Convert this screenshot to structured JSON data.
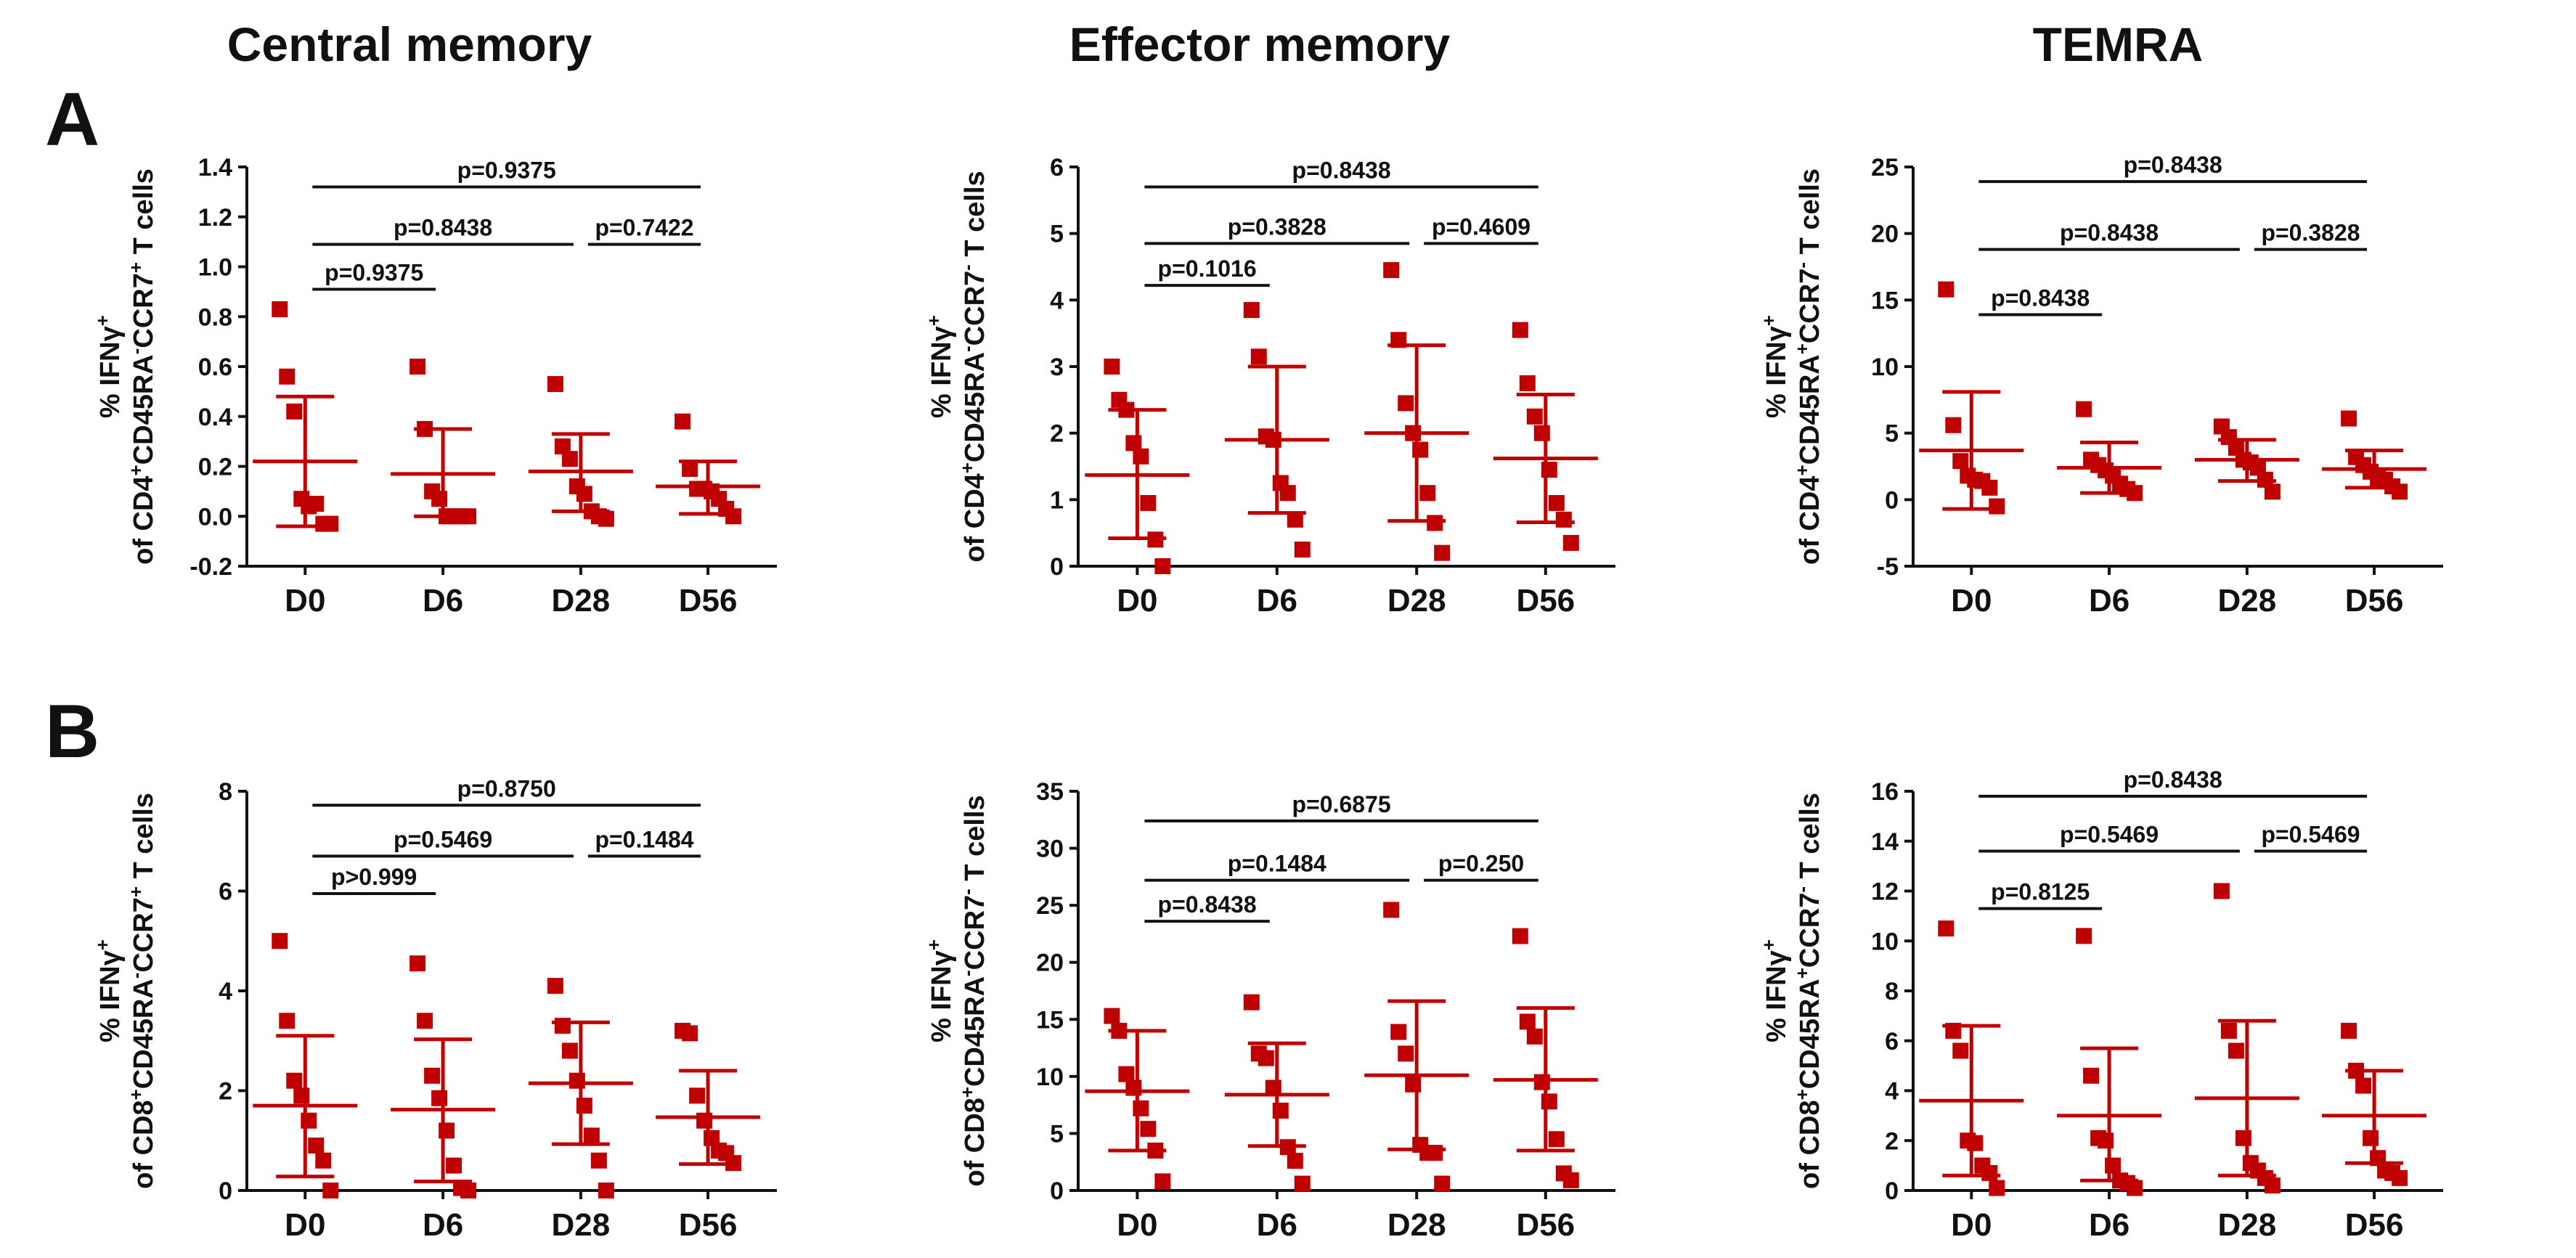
{
  "column_titles": [
    "Central memory",
    "Effector memory",
    "TEMRA"
  ],
  "panel_labels": [
    "A",
    "B"
  ],
  "colors": {
    "marker": "#c00000",
    "axis": "#111111"
  },
  "chart_data": [
    {
      "id": "A-central",
      "type": "scatter",
      "row": "A",
      "col": 0,
      "categories": [
        "D0",
        "D6",
        "D28",
        "D56"
      ],
      "ylim": [
        -0.2,
        1.4
      ],
      "yticks": [
        -0.2,
        0.0,
        0.2,
        0.4,
        0.6,
        0.8,
        1.0,
        1.2,
        1.4
      ],
      "ytick_labels": [
        "-0.2",
        "0.0",
        "0.2",
        "0.4",
        "0.6",
        "0.8",
        "1.0",
        "1.2",
        "1.4"
      ],
      "ylabel_line1": "% IFNγ",
      "ylabel_line1_sup": "+",
      "ylabel_line2": [
        [
          "of CD4",
          ""
        ],
        [
          "+",
          "sup"
        ],
        [
          "CD45RA",
          ""
        ],
        [
          "-",
          "sup"
        ],
        [
          "CCR7",
          ""
        ],
        [
          "+",
          "sup"
        ],
        [
          " T cells",
          ""
        ]
      ],
      "points": [
        [
          0.83,
          0.56,
          0.42,
          0.07,
          0.04,
          0.05,
          -0.03,
          -0.03
        ],
        [
          0.6,
          0.35,
          0.1,
          0.07,
          0.0,
          0.0,
          0.0,
          0.0
        ],
        [
          0.53,
          0.28,
          0.23,
          0.12,
          0.09,
          0.02,
          0.0,
          -0.01
        ],
        [
          0.38,
          0.19,
          0.11,
          0.11,
          0.1,
          0.07,
          0.03,
          0.0
        ]
      ],
      "mean": [
        0.22,
        0.17,
        0.18,
        0.12
      ],
      "sd_upper": [
        0.48,
        0.35,
        0.33,
        0.22
      ],
      "sd_lower": [
        -0.04,
        0.0,
        0.02,
        0.01
      ],
      "comparisons": [
        {
          "from": 0,
          "to": 1,
          "label": "p=0.9375",
          "y": 0.91
        },
        {
          "from": 0,
          "to": 2,
          "label": "p=0.8438",
          "y": 1.09
        },
        {
          "from": 2,
          "to": 3,
          "label": "p=0.7422",
          "y": 1.09
        },
        {
          "from": 0,
          "to": 3,
          "label": "p=0.9375",
          "y": 1.32
        }
      ]
    },
    {
      "id": "A-effector",
      "type": "scatter",
      "row": "A",
      "col": 1,
      "categories": [
        "D0",
        "D6",
        "D28",
        "D56"
      ],
      "ylim": [
        0,
        6
      ],
      "yticks": [
        0,
        1,
        2,
        3,
        4,
        5,
        6
      ],
      "ytick_labels": [
        "0",
        "1",
        "2",
        "3",
        "4",
        "5",
        "6"
      ],
      "ylabel_line1": "% IFNγ",
      "ylabel_line1_sup": "+",
      "ylabel_line2": [
        [
          "of CD4",
          ""
        ],
        [
          "+",
          "sup"
        ],
        [
          "CD45RA",
          ""
        ],
        [
          "-",
          "sup"
        ],
        [
          "CCR7",
          ""
        ],
        [
          "-",
          "sup"
        ],
        [
          " T cells",
          ""
        ]
      ],
      "points": [
        [
          3.0,
          2.5,
          2.35,
          1.85,
          1.65,
          0.95,
          0.4,
          0.0
        ],
        [
          3.85,
          3.15,
          1.95,
          1.9,
          1.25,
          1.1,
          0.7,
          0.25
        ],
        [
          4.45,
          3.4,
          2.45,
          2.0,
          1.75,
          1.1,
          0.65,
          0.2
        ],
        [
          3.55,
          2.75,
          2.25,
          2.0,
          1.45,
          0.95,
          0.7,
          0.35
        ]
      ],
      "mean": [
        1.37,
        1.9,
        2.0,
        1.62
      ],
      "sd_upper": [
        2.35,
        3.0,
        3.32,
        2.58
      ],
      "sd_lower": [
        0.42,
        0.8,
        0.68,
        0.66
      ],
      "comparisons": [
        {
          "from": 0,
          "to": 1,
          "label": "p=0.1016",
          "y": 4.22
        },
        {
          "from": 0,
          "to": 2,
          "label": "p=0.3828",
          "y": 4.85
        },
        {
          "from": 2,
          "to": 3,
          "label": "p=0.4609",
          "y": 4.85
        },
        {
          "from": 0,
          "to": 3,
          "label": "p=0.8438",
          "y": 5.7
        }
      ]
    },
    {
      "id": "A-temra",
      "type": "scatter",
      "row": "A",
      "col": 2,
      "categories": [
        "D0",
        "D6",
        "D28",
        "D56"
      ],
      "ylim": [
        -5,
        25
      ],
      "yticks": [
        -5,
        0,
        5,
        10,
        15,
        20,
        25
      ],
      "ytick_labels": [
        "-5",
        "0",
        "5",
        "10",
        "15",
        "20",
        "25"
      ],
      "ylabel_line1": "% IFNγ",
      "ylabel_line1_sup": "+",
      "ylabel_line2": [
        [
          "of CD4",
          ""
        ],
        [
          "+",
          "sup"
        ],
        [
          "CD45RA",
          ""
        ],
        [
          "+",
          "sup"
        ],
        [
          "CCR7",
          ""
        ],
        [
          "-",
          "sup"
        ],
        [
          " T cells",
          ""
        ]
      ],
      "points": [
        [
          15.8,
          5.6,
          2.9,
          1.8,
          1.5,
          1.4,
          0.9,
          -0.5
        ],
        [
          6.8,
          3.0,
          2.6,
          2.2,
          1.8,
          1.2,
          0.8,
          0.5
        ],
        [
          5.5,
          4.7,
          3.9,
          3.0,
          2.8,
          2.4,
          1.5,
          0.6
        ],
        [
          6.1,
          3.2,
          2.6,
          2.1,
          1.6,
          1.5,
          1.0,
          0.6
        ]
      ],
      "mean": [
        3.7,
        2.4,
        3.0,
        2.3
      ],
      "sd_upper": [
        8.1,
        4.3,
        4.5,
        3.7
      ],
      "sd_lower": [
        -0.7,
        0.5,
        1.4,
        0.9
      ],
      "comparisons": [
        {
          "from": 0,
          "to": 1,
          "label": "p=0.8438",
          "y": 13.9
        },
        {
          "from": 0,
          "to": 2,
          "label": "p=0.8438",
          "y": 18.8
        },
        {
          "from": 2,
          "to": 3,
          "label": "p=0.3828",
          "y": 18.8
        },
        {
          "from": 0,
          "to": 3,
          "label": "p=0.8438",
          "y": 23.9
        }
      ]
    },
    {
      "id": "B-central",
      "type": "scatter",
      "row": "B",
      "col": 0,
      "categories": [
        "D0",
        "D6",
        "D28",
        "D56"
      ],
      "ylim": [
        0,
        8
      ],
      "yticks": [
        0,
        2,
        4,
        6,
        8
      ],
      "ytick_labels": [
        "0",
        "2",
        "4",
        "6",
        "8"
      ],
      "ylabel_line1": "% IFNγ",
      "ylabel_line1_sup": "+",
      "ylabel_line2": [
        [
          "of CD8",
          ""
        ],
        [
          "+",
          "sup"
        ],
        [
          "CD45RA",
          ""
        ],
        [
          "-",
          "sup"
        ],
        [
          "CCR7",
          ""
        ],
        [
          "+",
          "sup"
        ],
        [
          " T cells",
          ""
        ]
      ],
      "points": [
        [
          5.0,
          3.4,
          2.2,
          1.9,
          1.4,
          0.9,
          0.6,
          0.0
        ],
        [
          4.55,
          3.4,
          2.3,
          1.85,
          1.2,
          0.5,
          0.05,
          0.0
        ],
        [
          4.1,
          3.3,
          2.8,
          2.2,
          1.7,
          1.1,
          0.6,
          0.0
        ],
        [
          3.2,
          3.15,
          1.9,
          1.4,
          1.05,
          0.8,
          0.75,
          0.55
        ]
      ],
      "mean": [
        1.7,
        1.62,
        2.15,
        1.47
      ],
      "sd_upper": [
        3.1,
        3.03,
        3.37,
        2.4
      ],
      "sd_lower": [
        0.28,
        0.18,
        0.93,
        0.53
      ],
      "comparisons": [
        {
          "from": 0,
          "to": 1,
          "label": "p>0.999",
          "y": 5.95
        },
        {
          "from": 0,
          "to": 2,
          "label": "p=0.5469",
          "y": 6.7
        },
        {
          "from": 2,
          "to": 3,
          "label": "p=0.1484",
          "y": 6.7
        },
        {
          "from": 0,
          "to": 3,
          "label": "p=0.8750",
          "y": 7.72
        }
      ]
    },
    {
      "id": "B-effector",
      "type": "scatter",
      "row": "B",
      "col": 1,
      "categories": [
        "D0",
        "D6",
        "D28",
        "D56"
      ],
      "ylim": [
        0,
        35
      ],
      "yticks": [
        0,
        5,
        10,
        15,
        20,
        25,
        30,
        35
      ],
      "ytick_labels": [
        "0",
        "5",
        "10",
        "15",
        "20",
        "25",
        "30",
        "35"
      ],
      "ylabel_line1": "% IFNγ",
      "ylabel_line1_sup": "+",
      "ylabel_line2": [
        [
          "of CD8",
          ""
        ],
        [
          "+",
          "sup"
        ],
        [
          "CD45RA",
          ""
        ],
        [
          "-",
          "sup"
        ],
        [
          "CCR7",
          ""
        ],
        [
          "-",
          "sup"
        ],
        [
          " T cells",
          ""
        ]
      ],
      "points": [
        [
          15.3,
          14.0,
          10.2,
          9.0,
          7.2,
          5.4,
          3.5,
          0.8
        ],
        [
          16.5,
          12.0,
          11.6,
          9.0,
          7.0,
          3.8,
          2.6,
          0.6
        ],
        [
          24.6,
          13.9,
          12.0,
          9.3,
          4.0,
          3.3,
          3.3,
          0.6
        ],
        [
          22.3,
          14.8,
          13.5,
          9.5,
          7.8,
          4.5,
          1.5,
          0.9
        ]
      ],
      "mean": [
        8.7,
        8.4,
        10.1,
        9.7
      ],
      "sd_upper": [
        14.0,
        12.9,
        16.6,
        16.0
      ],
      "sd_lower": [
        3.5,
        3.9,
        3.6,
        3.5
      ],
      "comparisons": [
        {
          "from": 0,
          "to": 1,
          "label": "p=0.8438",
          "y": 23.6
        },
        {
          "from": 0,
          "to": 2,
          "label": "p=0.1484",
          "y": 27.2
        },
        {
          "from": 2,
          "to": 3,
          "label": "p=0.250",
          "y": 27.2
        },
        {
          "from": 0,
          "to": 3,
          "label": "p=0.6875",
          "y": 32.4
        }
      ]
    },
    {
      "id": "B-temra",
      "type": "scatter",
      "row": "B",
      "col": 2,
      "categories": [
        "D0",
        "D6",
        "D28",
        "D56"
      ],
      "ylim": [
        0,
        16
      ],
      "yticks": [
        0,
        2,
        4,
        6,
        8,
        10,
        12,
        14,
        16
      ],
      "ytick_labels": [
        "0",
        "2",
        "4",
        "6",
        "8",
        "10",
        "12",
        "14",
        "16"
      ],
      "ylabel_line1": "% IFNγ",
      "ylabel_line1_sup": "+",
      "ylabel_line2": [
        [
          "of CD8",
          ""
        ],
        [
          "+",
          "sup"
        ],
        [
          "CD45RA",
          ""
        ],
        [
          "+",
          "sup"
        ],
        [
          "CCR7",
          ""
        ],
        [
          "-",
          "sup"
        ],
        [
          " T cells",
          ""
        ]
      ],
      "points": [
        [
          10.5,
          6.4,
          5.6,
          2.0,
          1.9,
          1.0,
          0.7,
          0.1
        ],
        [
          10.2,
          4.6,
          2.1,
          2.0,
          1.0,
          0.4,
          0.3,
          0.1
        ],
        [
          12.0,
          6.4,
          5.6,
          2.1,
          1.1,
          0.8,
          0.5,
          0.2
        ],
        [
          6.4,
          4.8,
          4.2,
          2.1,
          1.3,
          0.8,
          0.7,
          0.5
        ]
      ],
      "mean": [
        3.6,
        3.0,
        3.7,
        3.0
      ],
      "sd_upper": [
        6.6,
        5.7,
        6.8,
        4.8
      ],
      "sd_lower": [
        0.6,
        0.4,
        0.6,
        1.1
      ],
      "comparisons": [
        {
          "from": 0,
          "to": 1,
          "label": "p=0.8125",
          "y": 11.3
        },
        {
          "from": 0,
          "to": 2,
          "label": "p=0.5469",
          "y": 13.6
        },
        {
          "from": 2,
          "to": 3,
          "label": "p=0.5469",
          "y": 13.6
        },
        {
          "from": 0,
          "to": 3,
          "label": "p=0.8438",
          "y": 15.8
        }
      ]
    }
  ]
}
